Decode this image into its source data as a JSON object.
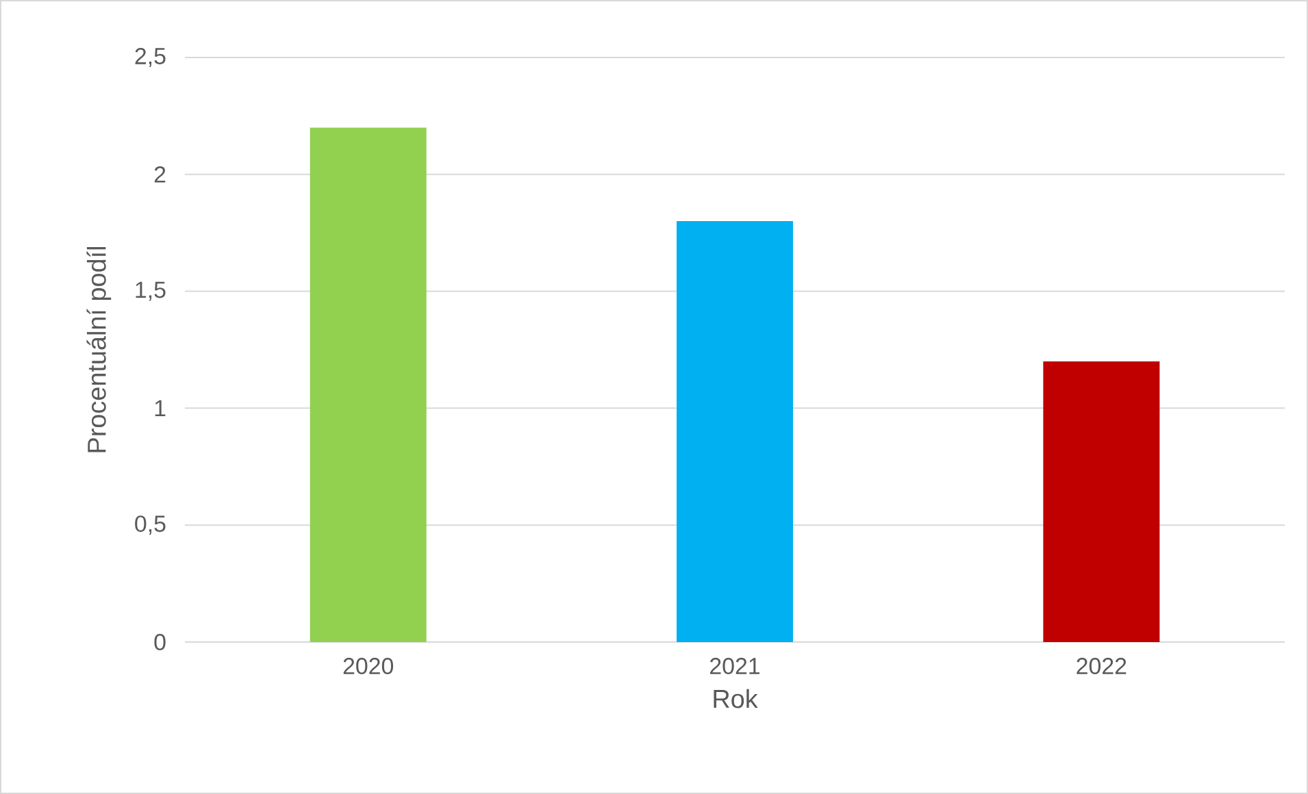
{
  "chart_data": {
    "type": "bar",
    "xlabel": "Rok",
    "ylabel": "Procentuální podíl",
    "categories": [
      "2020",
      "2021",
      "2022"
    ],
    "values": [
      2.2,
      1.8,
      1.2
    ],
    "colors": [
      "#92d050",
      "#00b0f0",
      "#c00000"
    ],
    "ylim": [
      0,
      2.5
    ],
    "yticks": [
      0,
      {
        "value": 0.5,
        "label": "0,5"
      },
      1,
      {
        "value": 1.5,
        "label": "1,5"
      },
      2,
      {
        "value": 2.5,
        "label": "2,5"
      }
    ],
    "grid": "y"
  }
}
